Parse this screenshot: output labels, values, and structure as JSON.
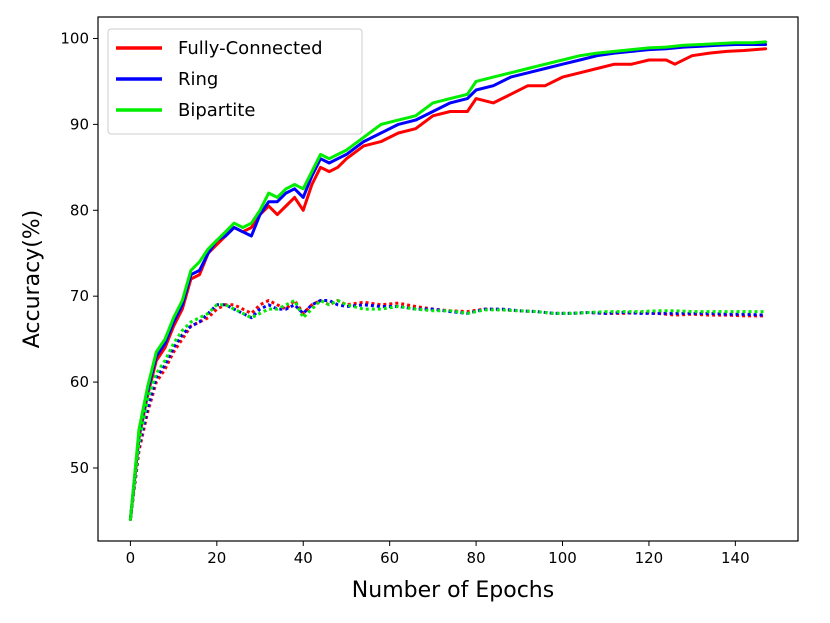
{
  "chart_data": {
    "type": "line",
    "title": "",
    "xlabel": "Number of Epochs",
    "ylabel": "Accuracy(%)",
    "xlim": [
      -7.5,
      154.5
    ],
    "ylim": [
      41.5,
      102.5
    ],
    "xticks": [
      0,
      20,
      40,
      60,
      80,
      100,
      120,
      140
    ],
    "yticks": [
      50,
      60,
      70,
      80,
      90,
      100
    ],
    "grid": false,
    "legend_placement": "top-left",
    "series": [
      {
        "name": "Fully-Connected",
        "color": "#ff0000",
        "style": "solid",
        "x": [
          0,
          2,
          4,
          6,
          8,
          10,
          12,
          14,
          16,
          18,
          20,
          22,
          24,
          26,
          28,
          30,
          32,
          34,
          36,
          38,
          40,
          42,
          44,
          46,
          48,
          50,
          54,
          58,
          62,
          66,
          70,
          74,
          78,
          80,
          84,
          88,
          92,
          96,
          100,
          104,
          108,
          112,
          116,
          120,
          124,
          126,
          130,
          134,
          138,
          142,
          147
        ],
        "y": [
          44.0,
          53.5,
          58.5,
          62.5,
          64.0,
          66.5,
          68.5,
          72.0,
          72.5,
          75.0,
          76.0,
          77.0,
          78.0,
          77.5,
          78.0,
          79.5,
          80.5,
          79.5,
          80.5,
          81.5,
          80.0,
          83.0,
          85.0,
          84.5,
          85.0,
          86.0,
          87.5,
          88.0,
          89.0,
          89.5,
          91.0,
          91.5,
          91.5,
          93.0,
          92.5,
          93.5,
          94.5,
          94.5,
          95.5,
          96.0,
          96.5,
          97.0,
          97.0,
          97.5,
          97.5,
          97.0,
          98.0,
          98.3,
          98.5,
          98.6,
          98.8
        ]
      },
      {
        "name": "Ring",
        "color": "#0000ff",
        "style": "solid",
        "x": [
          0,
          2,
          4,
          6,
          8,
          10,
          12,
          14,
          16,
          18,
          20,
          22,
          24,
          26,
          28,
          30,
          32,
          34,
          36,
          38,
          40,
          42,
          44,
          46,
          48,
          50,
          54,
          58,
          62,
          66,
          70,
          74,
          78,
          80,
          84,
          88,
          92,
          96,
          100,
          104,
          108,
          112,
          116,
          120,
          124,
          128,
          132,
          136,
          140,
          144,
          147
        ],
        "y": [
          44.0,
          54.0,
          59.0,
          63.0,
          64.5,
          67.0,
          69.0,
          72.5,
          73.0,
          75.0,
          76.5,
          77.0,
          78.0,
          77.5,
          77.0,
          79.5,
          81.0,
          81.0,
          82.0,
          82.5,
          81.5,
          84.0,
          86.0,
          85.5,
          86.0,
          86.5,
          88.0,
          89.0,
          90.0,
          90.5,
          91.5,
          92.5,
          93.0,
          94.0,
          94.5,
          95.5,
          96.0,
          96.5,
          97.0,
          97.5,
          98.0,
          98.3,
          98.5,
          98.7,
          98.8,
          99.0,
          99.1,
          99.2,
          99.3,
          99.3,
          99.3
        ]
      },
      {
        "name": "Bipartite",
        "color": "#00ee00",
        "style": "solid",
        "x": [
          0,
          2,
          4,
          6,
          8,
          10,
          12,
          14,
          16,
          18,
          20,
          22,
          24,
          26,
          28,
          30,
          32,
          34,
          36,
          38,
          40,
          42,
          44,
          46,
          48,
          50,
          54,
          58,
          62,
          66,
          70,
          74,
          78,
          80,
          84,
          88,
          92,
          96,
          100,
          104,
          108,
          112,
          116,
          120,
          124,
          128,
          132,
          136,
          140,
          144,
          147
        ],
        "y": [
          44.0,
          54.5,
          59.5,
          63.5,
          65.0,
          67.5,
          69.5,
          73.0,
          74.0,
          75.5,
          76.5,
          77.5,
          78.5,
          78.0,
          78.5,
          80.0,
          82.0,
          81.5,
          82.5,
          83.0,
          82.5,
          84.5,
          86.5,
          86.0,
          86.5,
          87.0,
          88.5,
          90.0,
          90.5,
          91.0,
          92.5,
          93.0,
          93.5,
          95.0,
          95.5,
          96.0,
          96.5,
          97.0,
          97.5,
          98.0,
          98.3,
          98.5,
          98.7,
          98.9,
          99.0,
          99.2,
          99.3,
          99.4,
          99.5,
          99.5,
          99.6
        ]
      },
      {
        "color": "#ff0000",
        "style": "dotted",
        "x": [
          0,
          2,
          4,
          6,
          8,
          10,
          12,
          14,
          16,
          18,
          20,
          22,
          24,
          26,
          28,
          30,
          32,
          34,
          36,
          38,
          40,
          42,
          44,
          46,
          48,
          50,
          54,
          58,
          62,
          66,
          70,
          74,
          78,
          82,
          86,
          90,
          94,
          98,
          102,
          106,
          110,
          114,
          118,
          122,
          126,
          130,
          134,
          138,
          142,
          147
        ],
        "y": [
          44.0,
          52.0,
          56.5,
          60.0,
          61.5,
          63.5,
          65.0,
          66.5,
          67.0,
          67.5,
          68.5,
          69.0,
          69.0,
          68.5,
          68.0,
          69.0,
          69.5,
          69.0,
          68.5,
          69.5,
          68.0,
          69.0,
          69.5,
          69.0,
          69.5,
          69.0,
          69.3,
          69.0,
          69.2,
          68.8,
          68.5,
          68.3,
          68.2,
          68.5,
          68.4,
          68.3,
          68.2,
          68.0,
          68.0,
          68.1,
          68.0,
          68.0,
          68.1,
          68.0,
          67.8,
          67.9,
          67.8,
          67.8,
          67.7,
          67.7
        ]
      },
      {
        "color": "#0000ff",
        "style": "dotted",
        "x": [
          0,
          2,
          4,
          6,
          8,
          10,
          12,
          14,
          16,
          18,
          20,
          22,
          24,
          26,
          28,
          30,
          32,
          34,
          36,
          38,
          40,
          42,
          44,
          46,
          48,
          50,
          54,
          58,
          62,
          66,
          70,
          74,
          78,
          82,
          86,
          90,
          94,
          98,
          102,
          106,
          110,
          114,
          118,
          122,
          126,
          130,
          134,
          138,
          142,
          147
        ],
        "y": [
          44.0,
          52.5,
          57.0,
          60.5,
          62.0,
          64.0,
          65.5,
          66.5,
          67.0,
          68.0,
          69.0,
          69.0,
          68.5,
          68.0,
          67.5,
          68.5,
          69.0,
          68.5,
          68.5,
          69.0,
          68.0,
          69.0,
          69.5,
          69.5,
          69.0,
          68.8,
          69.0,
          68.8,
          68.8,
          68.5,
          68.5,
          68.2,
          68.0,
          68.5,
          68.5,
          68.3,
          68.2,
          68.0,
          68.0,
          68.1,
          68.0,
          68.1,
          68.0,
          68.0,
          68.0,
          68.0,
          68.0,
          67.9,
          67.9,
          67.8
        ]
      },
      {
        "color": "#00ee00",
        "style": "dotted",
        "x": [
          0,
          2,
          4,
          6,
          8,
          10,
          12,
          14,
          16,
          18,
          20,
          22,
          24,
          26,
          28,
          30,
          32,
          34,
          36,
          38,
          40,
          42,
          44,
          46,
          48,
          50,
          54,
          58,
          62,
          66,
          70,
          74,
          78,
          82,
          86,
          90,
          94,
          98,
          102,
          106,
          110,
          114,
          118,
          122,
          126,
          130,
          134,
          138,
          142,
          147
        ],
        "y": [
          44.0,
          53.0,
          58.0,
          61.0,
          62.5,
          64.5,
          66.0,
          67.0,
          67.5,
          68.0,
          69.0,
          69.0,
          68.5,
          68.0,
          67.5,
          68.0,
          68.5,
          68.5,
          69.0,
          69.5,
          67.5,
          68.5,
          69.5,
          69.0,
          69.5,
          69.0,
          68.5,
          68.5,
          68.8,
          68.5,
          68.3,
          68.3,
          68.0,
          68.4,
          68.4,
          68.3,
          68.2,
          68.0,
          68.0,
          68.1,
          68.2,
          68.2,
          68.2,
          68.3,
          68.3,
          68.2,
          68.2,
          68.2,
          68.2,
          68.2
        ]
      }
    ]
  }
}
